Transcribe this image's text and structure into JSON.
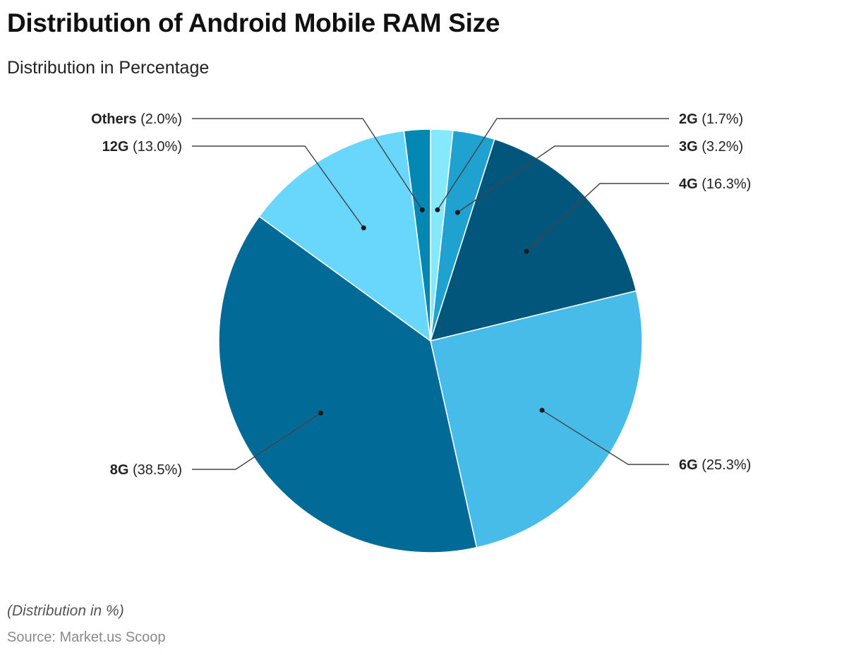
{
  "header": {
    "title": "Distribution of Android Mobile RAM Size",
    "subtitle": "Distribution in Percentage"
  },
  "footer": {
    "note": "(Distribution in %)",
    "source": "Source: Market.us Scoop"
  },
  "chart_data": {
    "type": "pie",
    "unit": "%",
    "slices": [
      {
        "label": "2G",
        "value": 1.7,
        "display": "(1.7%)",
        "color": "#86E9FB",
        "side": "right"
      },
      {
        "label": "3G",
        "value": 3.2,
        "display": "(3.2%)",
        "color": "#1FA2CF",
        "side": "right"
      },
      {
        "label": "4G",
        "value": 16.3,
        "display": "(16.3%)",
        "color": "#02557B",
        "side": "right"
      },
      {
        "label": "6G",
        "value": 25.3,
        "display": "(25.3%)",
        "color": "#47BCE8",
        "side": "right"
      },
      {
        "label": "8G",
        "value": 38.5,
        "display": "(38.5%)",
        "color": "#016A96",
        "side": "left"
      },
      {
        "label": "12G",
        "value": 13.0,
        "display": "(13.0%)",
        "color": "#69D6FC",
        "side": "left"
      },
      {
        "label": "Others",
        "value": 2.0,
        "display": "(2.0%)",
        "color": "#0387B3",
        "side": "left"
      }
    ],
    "start_angle": "12 o'clock",
    "direction": "clockwise",
    "legend": "none"
  }
}
